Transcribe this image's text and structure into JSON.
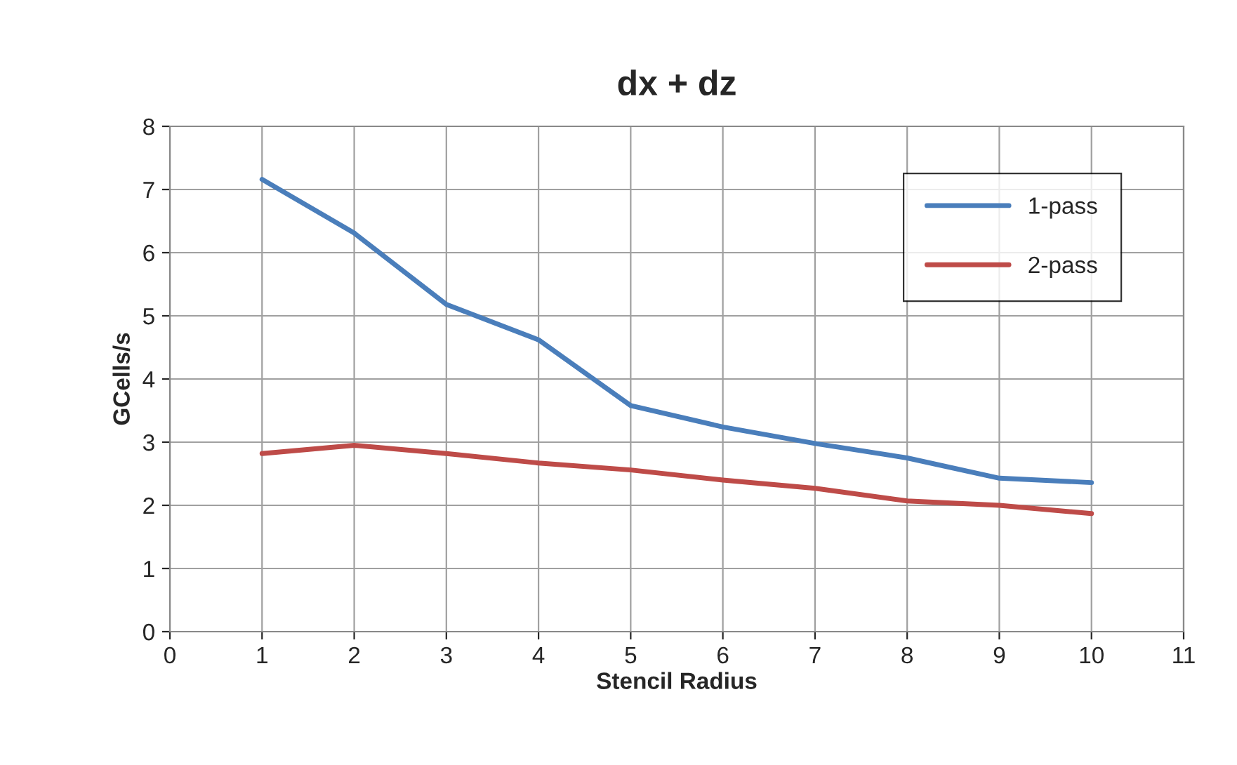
{
  "chart_data": {
    "type": "line",
    "title": "dx + dz",
    "xlabel": "Stencil Radius",
    "ylabel": "GCells/s",
    "x": [
      1,
      2,
      3,
      4,
      5,
      6,
      7,
      8,
      9,
      10
    ],
    "series": [
      {
        "name": "1-pass",
        "color": "#4a7ebb",
        "values": [
          7.16,
          6.31,
          5.18,
          4.62,
          3.58,
          3.24,
          2.98,
          2.75,
          2.43,
          2.36
        ]
      },
      {
        "name": "2-pass",
        "color": "#be4b48",
        "values": [
          2.82,
          2.95,
          2.82,
          2.67,
          2.56,
          2.4,
          2.27,
          2.07,
          2.0,
          1.87
        ]
      }
    ],
    "xlim": [
      0,
      11
    ],
    "xticks": [
      0,
      1,
      2,
      3,
      4,
      5,
      6,
      7,
      8,
      9,
      10,
      11
    ],
    "ylim": [
      0,
      8
    ],
    "yticks": [
      0,
      1,
      2,
      3,
      4,
      5,
      6,
      7,
      8
    ],
    "grid": true,
    "legend": "top right",
    "marker": "none",
    "line_style": "solid"
  }
}
